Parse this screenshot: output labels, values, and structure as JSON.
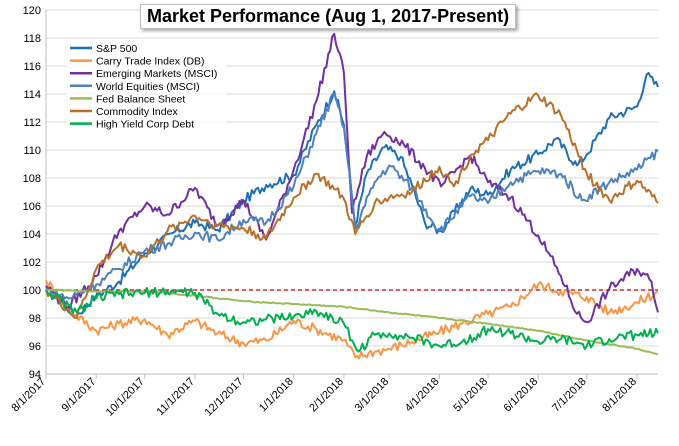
{
  "chart_data": {
    "type": "line",
    "title": "Market Performance (Aug 1, 2017-Present)",
    "xlabel": "",
    "ylabel": "",
    "x_range": [
      "2017-08-01",
      "2018-08-14"
    ],
    "ylim": [
      94,
      120
    ],
    "y_ticks": [
      94,
      96,
      98,
      100,
      102,
      104,
      106,
      108,
      110,
      112,
      114,
      116,
      118,
      120
    ],
    "x_ticks": [
      {
        "label": "8/1/2017",
        "date": "2017-08-01"
      },
      {
        "label": "9/1/2017",
        "date": "2017-09-01"
      },
      {
        "label": "10/1/2017",
        "date": "2017-10-01"
      },
      {
        "label": "11/1/2017",
        "date": "2017-11-01"
      },
      {
        "label": "12/1/2017",
        "date": "2017-12-01"
      },
      {
        "label": "1/1/2018",
        "date": "2018-01-01"
      },
      {
        "label": "2/1/2018",
        "date": "2018-02-01"
      },
      {
        "label": "3/1/2018",
        "date": "2018-03-01"
      },
      {
        "label": "4/1/2018",
        "date": "2018-04-01"
      },
      {
        "label": "5/1/2018",
        "date": "2018-05-01"
      },
      {
        "label": "6/1/2018",
        "date": "2018-06-01"
      },
      {
        "label": "7/1/2018",
        "date": "2018-07-01"
      },
      {
        "label": "8/1/2018",
        "date": "2018-08-01"
      }
    ],
    "reference_line": {
      "y": 100,
      "color": "#c00000",
      "style": "dashed"
    },
    "grid": {
      "horizontal": true,
      "vertical": false
    },
    "legend_position": "top-left",
    "series": [
      {
        "name": "S&P 500",
        "color": "#1f6fb6",
        "points": [
          [
            "2017-08-01",
            100
          ],
          [
            "2017-08-20",
            98.2
          ],
          [
            "2017-09-01",
            99.6
          ],
          [
            "2017-09-15",
            100.6
          ],
          [
            "2017-10-01",
            102.6
          ],
          [
            "2017-10-20",
            104.2
          ],
          [
            "2017-11-01",
            104.8
          ],
          [
            "2017-11-15",
            104.3
          ],
          [
            "2017-12-01",
            106.4
          ],
          [
            "2017-12-15",
            107.5
          ],
          [
            "2018-01-01",
            108.2
          ],
          [
            "2018-01-15",
            111.8
          ],
          [
            "2018-01-26",
            114.2
          ],
          [
            "2018-02-01",
            111.8
          ],
          [
            "2018-02-08",
            104.6
          ],
          [
            "2018-02-15",
            108.3
          ],
          [
            "2018-02-26",
            110.2
          ],
          [
            "2018-03-08",
            109.5
          ],
          [
            "2018-03-15",
            107.5
          ],
          [
            "2018-03-23",
            104.8
          ],
          [
            "2018-04-02",
            104.2
          ],
          [
            "2018-04-20",
            107.2
          ],
          [
            "2018-05-01",
            106.8
          ],
          [
            "2018-05-15",
            108.6
          ],
          [
            "2018-06-01",
            109.7
          ],
          [
            "2018-06-12",
            110.8
          ],
          [
            "2018-06-25",
            108.9
          ],
          [
            "2018-07-01",
            109.7
          ],
          [
            "2018-07-15",
            112.3
          ],
          [
            "2018-08-01",
            113.1
          ],
          [
            "2018-08-07",
            115.4
          ],
          [
            "2018-08-14",
            114.5
          ]
        ]
      },
      {
        "name": "Carry Trade Index (DB)",
        "color": "#f79646",
        "points": [
          [
            "2017-08-01",
            100.7
          ],
          [
            "2017-08-15",
            98.6
          ],
          [
            "2017-09-01",
            97.1
          ],
          [
            "2017-09-15",
            97.6
          ],
          [
            "2017-10-01",
            97.9
          ],
          [
            "2017-10-15",
            96.8
          ],
          [
            "2017-11-01",
            97.8
          ],
          [
            "2017-11-15",
            96.9
          ],
          [
            "2017-12-01",
            96.2
          ],
          [
            "2017-12-15",
            96.4
          ],
          [
            "2018-01-01",
            97.8
          ],
          [
            "2018-01-15",
            97.2
          ],
          [
            "2018-02-01",
            96.4
          ],
          [
            "2018-02-08",
            95.2
          ],
          [
            "2018-02-20",
            95.6
          ],
          [
            "2018-03-01",
            95.8
          ],
          [
            "2018-03-15",
            96.3
          ],
          [
            "2018-04-01",
            97.0
          ],
          [
            "2018-04-15",
            97.6
          ],
          [
            "2018-05-01",
            98.3
          ],
          [
            "2018-05-15",
            98.8
          ],
          [
            "2018-06-01",
            100.4
          ],
          [
            "2018-06-15",
            99.9
          ],
          [
            "2018-07-01",
            99.5
          ],
          [
            "2018-07-15",
            98.4
          ],
          [
            "2018-08-01",
            99.1
          ],
          [
            "2018-08-14",
            99.9
          ]
        ]
      },
      {
        "name": "Emerging Markets (MSCI)",
        "color": "#7030a0",
        "points": [
          [
            "2017-08-01",
            100.3
          ],
          [
            "2017-08-15",
            98.8
          ],
          [
            "2017-09-01",
            101.0
          ],
          [
            "2017-09-15",
            104.2
          ],
          [
            "2017-10-01",
            106.0
          ],
          [
            "2017-10-15",
            105.4
          ],
          [
            "2017-11-01",
            107.3
          ],
          [
            "2017-11-15",
            104.6
          ],
          [
            "2017-12-01",
            106.4
          ],
          [
            "2017-12-15",
            103.6
          ],
          [
            "2018-01-01",
            108.6
          ],
          [
            "2018-01-15",
            113.5
          ],
          [
            "2018-01-26",
            118.3
          ],
          [
            "2018-02-01",
            115.5
          ],
          [
            "2018-02-06",
            105.5
          ],
          [
            "2018-02-15",
            109.5
          ],
          [
            "2018-02-26",
            111.3
          ],
          [
            "2018-03-10",
            110.4
          ],
          [
            "2018-03-23",
            108.7
          ],
          [
            "2018-04-02",
            107.4
          ],
          [
            "2018-04-20",
            109.6
          ],
          [
            "2018-05-01",
            107.7
          ],
          [
            "2018-05-15",
            106.6
          ],
          [
            "2018-06-01",
            103.9
          ],
          [
            "2018-06-15",
            101.0
          ],
          [
            "2018-06-25",
            98.3
          ],
          [
            "2018-07-01",
            97.7
          ],
          [
            "2018-07-15",
            100.1
          ],
          [
            "2018-08-01",
            101.5
          ],
          [
            "2018-08-10",
            100.6
          ],
          [
            "2018-08-14",
            98.4
          ]
        ]
      },
      {
        "name": "World Equities (MSCI)",
        "color": "#4f81bd",
        "points": [
          [
            "2017-08-01",
            100.0
          ],
          [
            "2017-08-15",
            99.4
          ],
          [
            "2017-09-01",
            100.4
          ],
          [
            "2017-09-15",
            101.5
          ],
          [
            "2017-10-01",
            102.8
          ],
          [
            "2017-10-15",
            103.3
          ],
          [
            "2017-11-01",
            104.1
          ],
          [
            "2017-11-15",
            103.6
          ],
          [
            "2017-12-01",
            105.0
          ],
          [
            "2017-12-15",
            104.8
          ],
          [
            "2018-01-01",
            107.4
          ],
          [
            "2018-01-15",
            111.2
          ],
          [
            "2018-01-26",
            114.0
          ],
          [
            "2018-02-01",
            111.6
          ],
          [
            "2018-02-08",
            104.4
          ],
          [
            "2018-02-20",
            107.7
          ],
          [
            "2018-03-01",
            108.9
          ],
          [
            "2018-03-15",
            107.3
          ],
          [
            "2018-04-01",
            104.2
          ],
          [
            "2018-04-20",
            106.7
          ],
          [
            "2018-05-01",
            106.2
          ],
          [
            "2018-05-15",
            107.7
          ],
          [
            "2018-06-01",
            108.5
          ],
          [
            "2018-06-15",
            108.3
          ],
          [
            "2018-06-28",
            106.4
          ],
          [
            "2018-07-15",
            107.7
          ],
          [
            "2018-08-01",
            108.6
          ],
          [
            "2018-08-14",
            109.9
          ]
        ]
      },
      {
        "name": "Fed Balance Sheet",
        "color": "#9bbb59",
        "points": [
          [
            "2017-08-01",
            100.0
          ],
          [
            "2017-09-01",
            99.9
          ],
          [
            "2017-10-01",
            99.9
          ],
          [
            "2017-11-01",
            99.6
          ],
          [
            "2017-12-01",
            99.2
          ],
          [
            "2018-01-01",
            99.0
          ],
          [
            "2018-02-01",
            98.8
          ],
          [
            "2018-03-01",
            98.4
          ],
          [
            "2018-04-01",
            98.0
          ],
          [
            "2018-05-01",
            97.6
          ],
          [
            "2018-06-01",
            97.1
          ],
          [
            "2018-07-01",
            96.4
          ],
          [
            "2018-08-01",
            95.8
          ],
          [
            "2018-08-14",
            95.4
          ]
        ]
      },
      {
        "name": "Commodity Index",
        "color": "#b8712b",
        "points": [
          [
            "2017-08-01",
            100.0
          ],
          [
            "2017-08-20",
            98.0
          ],
          [
            "2017-09-01",
            101.5
          ],
          [
            "2017-09-15",
            103.2
          ],
          [
            "2017-10-01",
            102.4
          ],
          [
            "2017-10-15",
            104.2
          ],
          [
            "2017-11-01",
            105.3
          ],
          [
            "2017-11-15",
            104.6
          ],
          [
            "2017-12-01",
            104.4
          ],
          [
            "2017-12-15",
            103.7
          ],
          [
            "2018-01-01",
            106.6
          ],
          [
            "2018-01-15",
            108.3
          ],
          [
            "2018-01-26",
            107.2
          ],
          [
            "2018-02-01",
            106.5
          ],
          [
            "2018-02-08",
            104.0
          ],
          [
            "2018-02-20",
            106.2
          ],
          [
            "2018-03-01",
            106.6
          ],
          [
            "2018-03-15",
            107.0
          ],
          [
            "2018-04-01",
            108.8
          ],
          [
            "2018-04-10",
            107.4
          ],
          [
            "2018-04-20",
            109.6
          ],
          [
            "2018-05-01",
            110.7
          ],
          [
            "2018-05-15",
            112.6
          ],
          [
            "2018-06-01",
            113.9
          ],
          [
            "2018-06-15",
            112.5
          ],
          [
            "2018-07-01",
            108.3
          ],
          [
            "2018-07-15",
            106.4
          ],
          [
            "2018-08-01",
            107.8
          ],
          [
            "2018-08-14",
            106.2
          ]
        ]
      },
      {
        "name": "High Yield Corp Debt",
        "color": "#00b050",
        "points": [
          [
            "2017-08-01",
            100.0
          ],
          [
            "2017-08-20",
            98.4
          ],
          [
            "2017-09-01",
            99.4
          ],
          [
            "2017-09-15",
            99.7
          ],
          [
            "2017-10-01",
            99.8
          ],
          [
            "2017-10-15",
            99.9
          ],
          [
            "2017-11-01",
            99.8
          ],
          [
            "2017-11-15",
            98.3
          ],
          [
            "2017-12-01",
            97.7
          ],
          [
            "2017-12-15",
            97.9
          ],
          [
            "2018-01-01",
            98.1
          ],
          [
            "2018-01-15",
            98.5
          ],
          [
            "2018-02-01",
            97.6
          ],
          [
            "2018-02-10",
            95.6
          ],
          [
            "2018-02-20",
            96.8
          ],
          [
            "2018-03-01",
            96.9
          ],
          [
            "2018-03-15",
            96.6
          ],
          [
            "2018-04-01",
            96.0
          ],
          [
            "2018-04-15",
            96.3
          ],
          [
            "2018-05-01",
            97.2
          ],
          [
            "2018-05-15",
            96.9
          ],
          [
            "2018-06-01",
            96.3
          ],
          [
            "2018-06-15",
            96.5
          ],
          [
            "2018-07-01",
            96.0
          ],
          [
            "2018-07-15",
            96.5
          ],
          [
            "2018-08-01",
            96.8
          ],
          [
            "2018-08-14",
            96.9
          ]
        ]
      }
    ]
  }
}
